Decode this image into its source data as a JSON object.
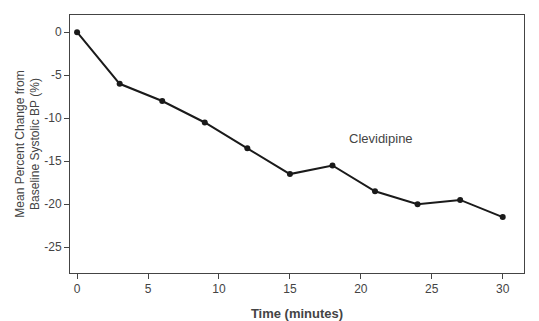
{
  "chart_data": {
    "type": "line",
    "x": [
      0,
      3,
      6,
      9,
      12,
      15,
      18,
      21,
      24,
      27,
      30
    ],
    "values": [
      0,
      -6.0,
      -8.0,
      -10.5,
      -13.5,
      -16.5,
      -15.5,
      -18.5,
      -20.0,
      -19.5,
      -21.5
    ],
    "color": "#1a1a1a",
    "marker": "circle",
    "line_style": "solid",
    "xlabel": "Time (minutes)",
    "ylabel": "Mean Percent Change from\nBaseline Systolic BP (%)",
    "annotations": [
      {
        "text": "Clevidipine",
        "x": 19.0,
        "y": -13.5
      }
    ],
    "xlim": [
      -0.5,
      31.5
    ],
    "ylim": [
      -28,
      2
    ],
    "xticks": [
      0,
      5,
      10,
      15,
      20,
      25,
      30
    ],
    "yticks": [
      0,
      -5,
      -10,
      -15,
      -20,
      -25
    ],
    "grid": false
  }
}
